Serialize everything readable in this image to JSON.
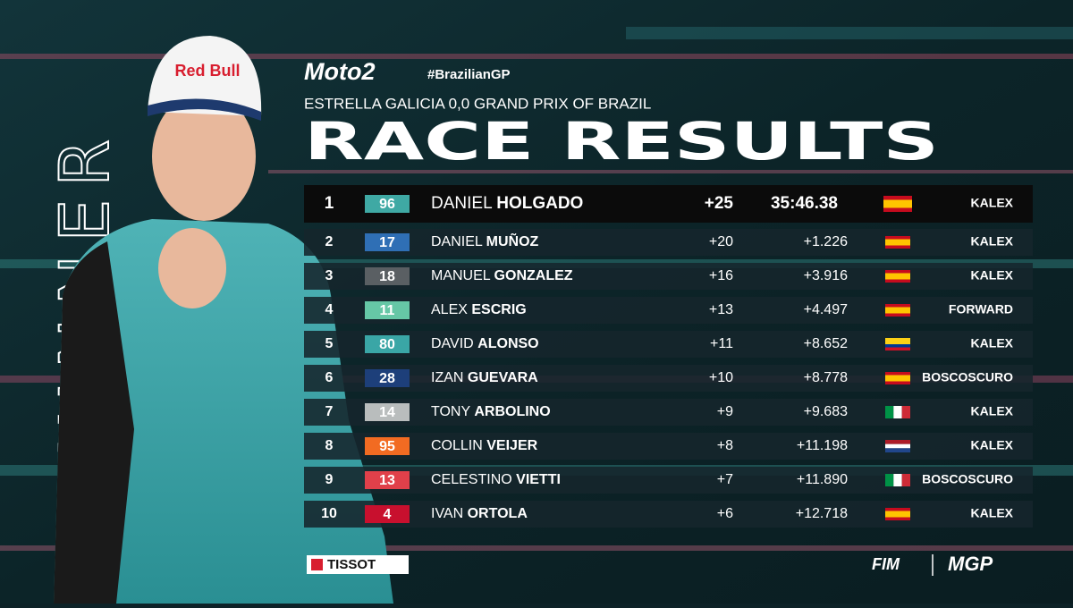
{
  "header": {
    "series": "Moto2",
    "hashtag": "#BrazilianGP",
    "event": "ESTRELLA GALICIA 0,0 GRAND PRIX OF BRAZIL",
    "title": "RACE RESULTS"
  },
  "side_label": "WINNER",
  "results": [
    {
      "position": "1",
      "number": "96",
      "first_name": "DANIEL",
      "last_name": "HOLGADO",
      "points": "+25",
      "time": "35:46.38",
      "team": "KALEX",
      "number_color": "#3fa9a4",
      "flag": {
        "dir": "h",
        "colors": [
          "#c60b1e",
          "#ffc400",
          "#ffc400",
          "#c60b1e"
        ]
      }
    },
    {
      "position": "2",
      "number": "17",
      "first_name": "DANIEL",
      "last_name": "MUÑOZ",
      "points": "+20",
      "time": "+1.226",
      "team": "KALEX",
      "number_color": "#2f6fb5",
      "flag": {
        "dir": "h",
        "colors": [
          "#c60b1e",
          "#ffc400",
          "#ffc400",
          "#c60b1e"
        ]
      }
    },
    {
      "position": "3",
      "number": "18",
      "first_name": "MANUEL",
      "last_name": "GONZALEZ",
      "points": "+16",
      "time": "+3.916",
      "team": "KALEX",
      "number_color": "#5a5f63",
      "flag": {
        "dir": "h",
        "colors": [
          "#c60b1e",
          "#ffc400",
          "#ffc400",
          "#c60b1e"
        ]
      }
    },
    {
      "position": "4",
      "number": "11",
      "first_name": "ALEX",
      "last_name": "ESCRIG",
      "points": "+13",
      "time": "+4.497",
      "team": "FORWARD",
      "number_color": "#66c7a6",
      "flag": {
        "dir": "h",
        "colors": [
          "#c60b1e",
          "#ffc400",
          "#ffc400",
          "#c60b1e"
        ]
      }
    },
    {
      "position": "5",
      "number": "80",
      "first_name": "DAVID",
      "last_name": "ALONSO",
      "points": "+11",
      "time": "+8.652",
      "team": "KALEX",
      "number_color": "#3aa6a6",
      "flag": {
        "dir": "h",
        "colors": [
          "#fcd116",
          "#fcd116",
          "#003893",
          "#ce1126"
        ]
      }
    },
    {
      "position": "6",
      "number": "28",
      "first_name": "IZAN",
      "last_name": "GUEVARA",
      "points": "+10",
      "time": "+8.778",
      "team": "BOSCOSCURO",
      "number_color": "#1d3f7a",
      "flag": {
        "dir": "h",
        "colors": [
          "#c60b1e",
          "#ffc400",
          "#ffc400",
          "#c60b1e"
        ]
      }
    },
    {
      "position": "7",
      "number": "14",
      "first_name": "TONY",
      "last_name": "ARBOLINO",
      "points": "+9",
      "time": "+9.683",
      "team": "KALEX",
      "number_color": "#b9bdbd",
      "flag": {
        "dir": "v",
        "colors": [
          "#009246",
          "#ffffff",
          "#ce2b37"
        ]
      }
    },
    {
      "position": "8",
      "number": "95",
      "first_name": "COLLIN",
      "last_name": "VEIJER",
      "points": "+8",
      "time": "+11.198",
      "team": "KALEX",
      "number_color": "#f26b22",
      "flag": {
        "dir": "h",
        "colors": [
          "#ae1c28",
          "#ffffff",
          "#21468b"
        ]
      }
    },
    {
      "position": "9",
      "number": "13",
      "first_name": "CELESTINO",
      "last_name": "VIETTI",
      "points": "+7",
      "time": "+11.890",
      "team": "BOSCOSCURO",
      "number_color": "#e0404a",
      "flag": {
        "dir": "v",
        "colors": [
          "#009246",
          "#ffffff",
          "#ce2b37"
        ]
      }
    },
    {
      "position": "10",
      "number": "4",
      "first_name": "IVAN",
      "last_name": "ORTOLA",
      "points": "+6",
      "time": "+12.718",
      "team": "KALEX",
      "number_color": "#c8102e",
      "flag": {
        "dir": "h",
        "colors": [
          "#c60b1e",
          "#ffc400",
          "#ffc400",
          "#c60b1e"
        ]
      }
    }
  ],
  "footer": {
    "sponsor": "TISSOT",
    "fim": "FIM",
    "mgp": "MGP"
  }
}
